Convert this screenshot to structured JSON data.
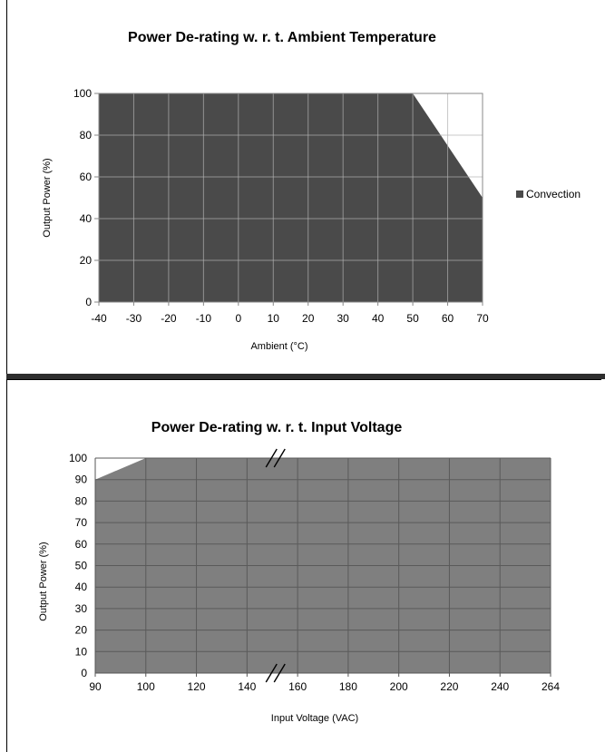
{
  "chart_data": [
    {
      "type": "area",
      "title": "Power De-rating w. r. t. Ambient Temperature",
      "xlabel": "Ambient (°C)",
      "ylabel": "Output Power (%)",
      "xlim": [
        -40,
        70
      ],
      "ylim": [
        0,
        100
      ],
      "xticks": [
        "-40",
        "-30",
        "-20",
        "-10",
        "0",
        "10",
        "20",
        "30",
        "40",
        "50",
        "60",
        "70"
      ],
      "yticks": [
        "0",
        "20",
        "40",
        "60",
        "80",
        "100"
      ],
      "grid": true,
      "legend": "right",
      "series": [
        {
          "name": "Convection",
          "x": [
            -40,
            50,
            70
          ],
          "y": [
            100,
            100,
            50
          ]
        }
      ],
      "colors": {
        "fill": "#4a4a4a",
        "grid": "#b0b0b0"
      }
    },
    {
      "type": "area",
      "title": "Power De-rating w. r. t.  Input Voltage",
      "xlabel": "Input Voltage (VAC)",
      "ylabel": "Output Power (%)",
      "xticks": [
        "90",
        "100",
        "120",
        "140",
        "160",
        "180",
        "200",
        "220",
        "240",
        "264"
      ],
      "yticks": [
        "0",
        "10",
        "20",
        "30",
        "40",
        "50",
        "60",
        "70",
        "80",
        "90",
        "100"
      ],
      "ylim": [
        0,
        100
      ],
      "axis_break": "between 140 and 160",
      "grid": true,
      "series": [
        {
          "x": [
            90,
            100,
            264
          ],
          "y": [
            90,
            100,
            100
          ]
        }
      ],
      "colors": {
        "fill": "#7f7f7f",
        "grid": "#5a5a5a"
      }
    }
  ]
}
